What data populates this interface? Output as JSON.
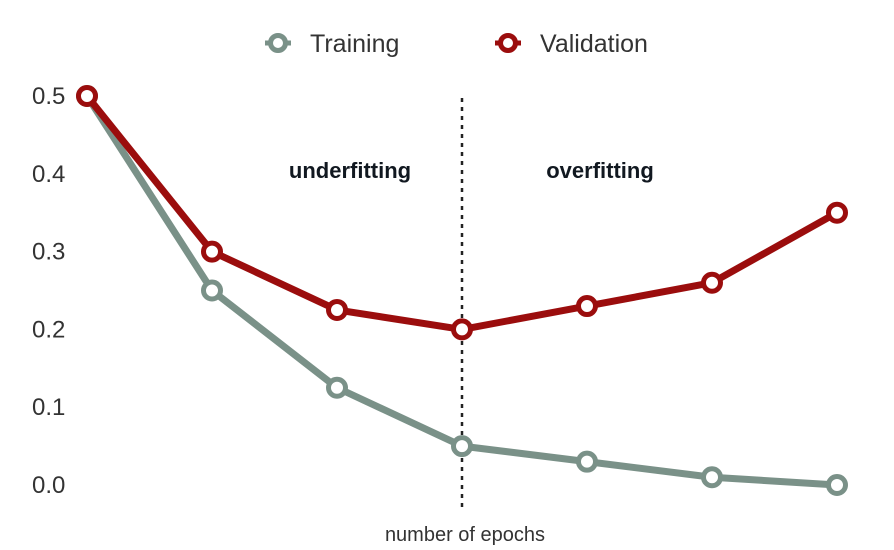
{
  "chart_data": {
    "type": "line",
    "title": "",
    "xlabel": "number of epochs",
    "ylabel": "",
    "x": [
      1,
      2,
      3,
      4,
      5,
      6,
      7
    ],
    "ylim": [
      0.0,
      0.5
    ],
    "yticks": [
      "0.0",
      "0.1",
      "0.2",
      "0.3",
      "0.4",
      "0.5"
    ],
    "grid": false,
    "legend_position": "top-center",
    "series": [
      {
        "name": "Training",
        "color": "#7a9188",
        "values": [
          0.5,
          0.25,
          0.125,
          0.05,
          0.03,
          0.01,
          0.0
        ]
      },
      {
        "name": "Validation",
        "color": "#9b0d0d",
        "values": [
          0.5,
          0.3,
          0.225,
          0.2,
          0.23,
          0.26,
          0.35
        ]
      }
    ],
    "divider_x": 4,
    "annotations": [
      {
        "text": "underfitting",
        "region": "left"
      },
      {
        "text": "overfitting",
        "region": "right"
      }
    ]
  }
}
